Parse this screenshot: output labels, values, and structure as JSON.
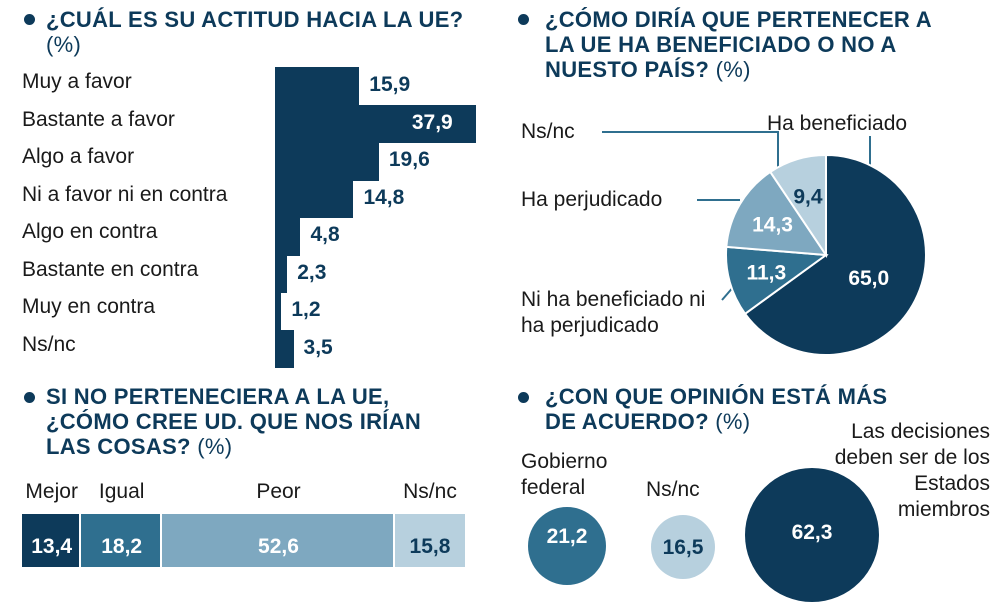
{
  "colors": {
    "dark": "#0d3a5a",
    "mid": "#2f6f8f",
    "light": "#7ea8c0",
    "pale": "#b7d0de"
  },
  "chart_data": [
    {
      "type": "bar",
      "title": "¿CUÁL ES SU ACTITUD HACIA LA UE?",
      "unit": "(%)",
      "categories": [
        "Muy a favor",
        "Bastante a favor",
        "Algo a favor",
        "Ni a favor ni en contra",
        "Algo en contra",
        "Bastante en contra",
        "Muy en contra",
        "Ns/nc"
      ],
      "values": [
        15.9,
        37.9,
        19.6,
        14.8,
        4.8,
        2.3,
        1.2,
        3.5
      ],
      "labels": [
        "15,9",
        "37,9",
        "19,6",
        "14,8",
        "4,8",
        "2,3",
        "1,2",
        "3,5"
      ]
    },
    {
      "type": "pie",
      "title": "¿CÓMO DIRÍA QUE PERTENECER A LA UE HA BENEFICIADO O NO A NUESTO PAÍS?",
      "unit": "(%)",
      "slices": [
        {
          "name": "Ha beneficiado",
          "value": 65.0,
          "label": "65,0"
        },
        {
          "name": "Ni ha beneficiado ni ha perjudicado",
          "value": 11.3,
          "label": "11,3"
        },
        {
          "name": "Ha perjudicado",
          "value": 14.3,
          "label": "14,3"
        },
        {
          "name": "Ns/nc",
          "value": 9.4,
          "label": "9,4"
        }
      ]
    },
    {
      "type": "bar",
      "subtype": "stacked-100",
      "title": "SI NO PERTENECIERA A LA UE, ¿CÓMO CREE UD. QUE NOS IRÍAN LAS COSAS?",
      "unit": "(%)",
      "categories": [
        "Mejor",
        "Igual",
        "Peor",
        "Ns/nc"
      ],
      "values": [
        13.4,
        18.2,
        52.6,
        15.8
      ],
      "labels": [
        "13,4",
        "18,2",
        "52,6",
        "15,8"
      ]
    },
    {
      "type": "bubble",
      "title": "¿CON QUE OPINIÓN ESTÁ MÁS DE ACUERDO?",
      "unit": "(%)",
      "items": [
        {
          "name": "Gobierno federal",
          "value": 21.2,
          "label": "21,2"
        },
        {
          "name": "Ns/nc",
          "value": 16.5,
          "label": "16,5"
        },
        {
          "name": "Las decisiones deben ser de los Estados miembros",
          "value": 62.3,
          "label": "62,3"
        }
      ]
    }
  ]
}
